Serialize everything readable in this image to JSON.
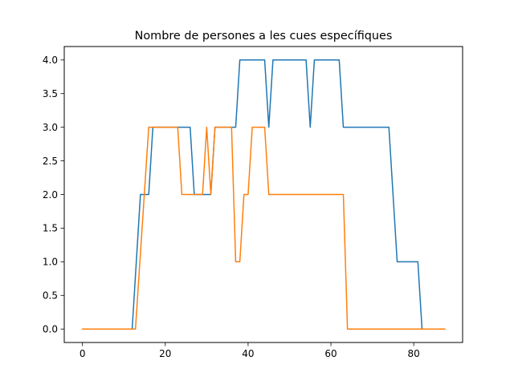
{
  "chart_data": {
    "type": "line",
    "title": "Nombre de persones a les cues específiques",
    "xlabel": "",
    "ylabel": "",
    "xlim": [
      -4.4,
      91.8
    ],
    "ylim": [
      -0.2,
      4.2
    ],
    "x_ticks": [
      0,
      20,
      40,
      60,
      80
    ],
    "x_tick_labels": [
      "0",
      "20",
      "40",
      "60",
      "80"
    ],
    "y_ticks": [
      0.0,
      0.5,
      1.0,
      1.5,
      2.0,
      2.5,
      3.0,
      3.5,
      4.0
    ],
    "y_tick_labels": [
      "0.0",
      "0.5",
      "1.0",
      "1.5",
      "2.0",
      "2.5",
      "3.0",
      "3.5",
      "4.0"
    ],
    "grid": false,
    "legend": "none",
    "series": [
      {
        "color": "#1f77b4",
        "x": [
          0,
          12,
          14,
          16,
          17,
          26,
          27,
          31,
          32,
          37,
          38,
          44,
          45,
          46,
          54,
          55,
          56,
          62,
          63,
          74,
          76,
          81,
          82,
          87.5
        ],
        "y": [
          0,
          0,
          2,
          2,
          3,
          3,
          2,
          2,
          3,
          3,
          4,
          4,
          3,
          4,
          4,
          3,
          4,
          4,
          3,
          3,
          1,
          1,
          0,
          0
        ]
      },
      {
        "color": "#ff7f0e",
        "x": [
          0,
          12.8,
          16,
          23,
          24,
          29,
          30,
          31,
          32,
          36,
          37,
          38,
          39,
          40,
          41,
          44,
          45,
          63,
          64,
          87.5
        ],
        "y": [
          0,
          0,
          3,
          3,
          2,
          2,
          3,
          2,
          3,
          3,
          1,
          1,
          2,
          2,
          3,
          3,
          2,
          2,
          0,
          0
        ]
      }
    ]
  }
}
